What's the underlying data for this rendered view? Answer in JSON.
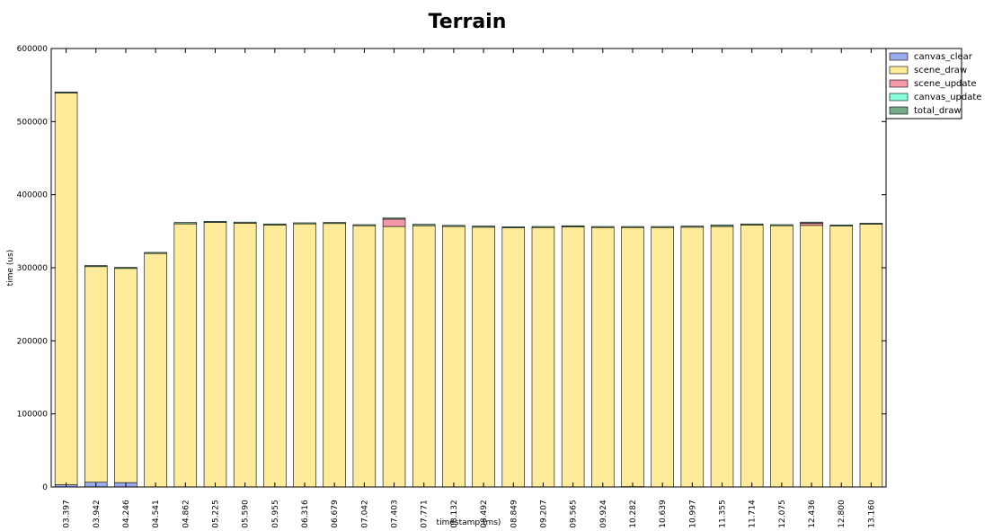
{
  "chart_data": {
    "type": "bar",
    "stacked": true,
    "title": "Terrain",
    "xlabel": "timestamp (ms)",
    "ylabel": "time (us)",
    "ylim": [
      0,
      600000
    ],
    "yticks": [
      0,
      100000,
      200000,
      300000,
      400000,
      500000,
      600000
    ],
    "ytick_labels": [
      "0",
      "100000",
      "200000",
      "300000",
      "400000",
      "500000",
      "600000"
    ],
    "grid": false,
    "legend": "top-right",
    "categories": [
      "03.397",
      "03.942",
      "04.246",
      "04.541",
      "04.862",
      "05.225",
      "05.590",
      "05.955",
      "06.316",
      "06.679",
      "07.042",
      "07.403",
      "07.771",
      "08.132",
      "08.492",
      "08.849",
      "09.207",
      "09.565",
      "09.924",
      "10.282",
      "10.639",
      "10.997",
      "11.355",
      "11.714",
      "12.075",
      "12.436",
      "12.800",
      "13.160"
    ],
    "series": [
      {
        "name": "canvas_clear",
        "color": "#99aaee",
        "values": [
          3000,
          6500,
          6000,
          0,
          0,
          0,
          0,
          0,
          0,
          0,
          0,
          0,
          0,
          0,
          0,
          0,
          0,
          0,
          0,
          500,
          0,
          0,
          0,
          0,
          0,
          0,
          0,
          0
        ]
      },
      {
        "name": "scene_draw",
        "color": "#ffeb99",
        "values": [
          536000,
          295000,
          293000,
          319500,
          360000,
          362000,
          361000,
          358500,
          360000,
          360500,
          357500,
          356500,
          357500,
          356500,
          355500,
          354500,
          355000,
          356000,
          355000,
          354500,
          355000,
          355500,
          356500,
          358500,
          357500,
          358000,
          357000,
          359500
        ]
      },
      {
        "name": "scene_update",
        "color": "#f598a8",
        "values": [
          0,
          0,
          0,
          0,
          0,
          0,
          0,
          0,
          0,
          0,
          0,
          10000,
          0,
          0,
          0,
          0,
          0,
          0,
          0,
          0,
          0,
          0,
          0,
          0,
          0,
          3000,
          0,
          0
        ]
      },
      {
        "name": "canvas_update",
        "color": "#88ffdd",
        "values": [
          0,
          0,
          0,
          0,
          0,
          0,
          0,
          0,
          0,
          0,
          0,
          0,
          0,
          0,
          0,
          0,
          0,
          0,
          0,
          0,
          0,
          0,
          0,
          0,
          0,
          0,
          0,
          0
        ]
      },
      {
        "name": "total_draw",
        "color": "#77aa88",
        "values": [
          1500,
          1500,
          1500,
          1500,
          2000,
          1500,
          1500,
          1500,
          1500,
          1500,
          1500,
          1500,
          2000,
          1500,
          1500,
          1500,
          1500,
          1500,
          1500,
          1500,
          1500,
          1500,
          2000,
          1500,
          1500,
          1500,
          1500,
          1500
        ]
      }
    ]
  }
}
